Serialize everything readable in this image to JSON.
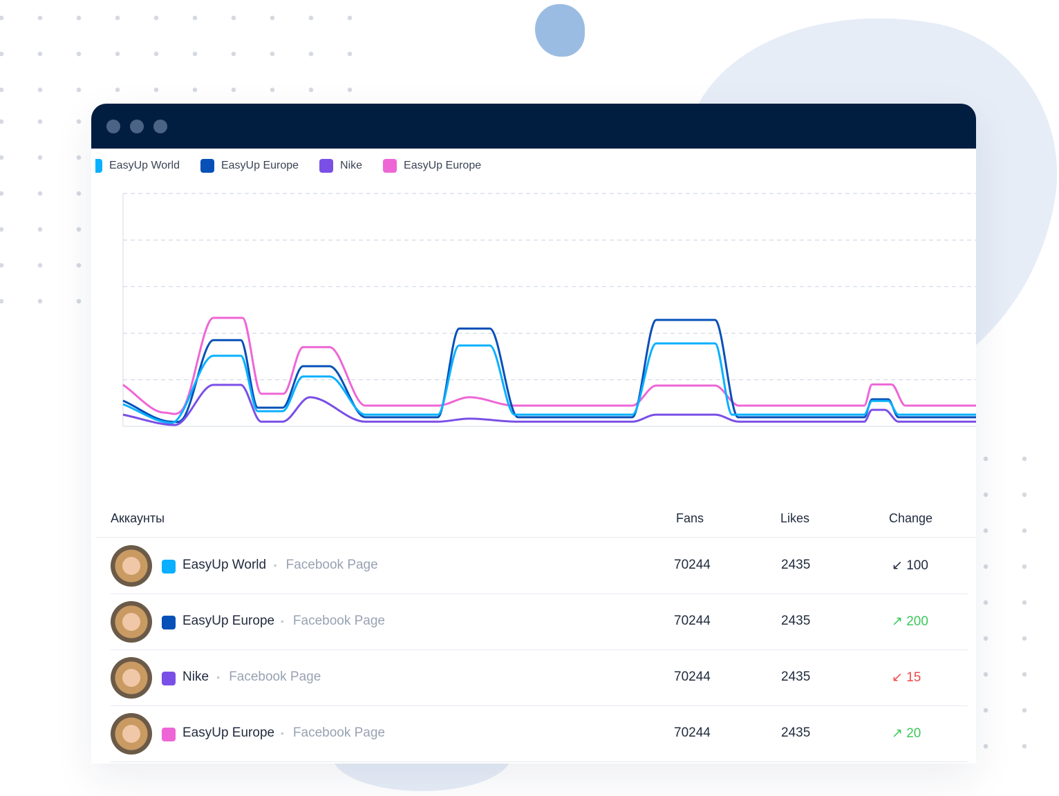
{
  "window": {
    "controls": [
      "close",
      "minimize",
      "maximize"
    ]
  },
  "legend": [
    {
      "label": "EasyUp World",
      "color": "#0ab0ff"
    },
    {
      "label": "EasyUp Europe",
      "color": "#0650b8"
    },
    {
      "label": "Nike",
      "color": "#7a4fe6"
    },
    {
      "label": "EasyUp Europe",
      "color": "#ee66d6"
    }
  ],
  "chart_data": {
    "type": "line",
    "title": "",
    "xlabel": "",
    "ylabel": "",
    "xlim": [
      0,
      100
    ],
    "ylim": [
      0,
      100
    ],
    "grid": "horizontal-dashed",
    "legend_position": "top-left",
    "series": [
      {
        "name": "EasyUp Europe",
        "color": "#ee66d6",
        "x": [
          0,
          4.9,
          7.1,
          10.6,
          14,
          16.2,
          18.8,
          21.1,
          24.2,
          28.4,
          36.9,
          40.6,
          45.9,
          59.7,
          62.5,
          69.4,
          72.2,
          86.9,
          87.8,
          90.1,
          91.7,
          100
        ],
        "y": [
          17.8,
          5.9,
          8,
          46.6,
          46.6,
          14,
          14,
          34,
          34,
          8.9,
          8.9,
          12.5,
          8.9,
          8.9,
          17.5,
          17.5,
          8.9,
          8.9,
          18,
          18,
          8.9,
          8.9
        ]
      },
      {
        "name": "EasyUp Europe",
        "color": "#0650b8",
        "x": [
          0,
          5.7,
          7.1,
          10.6,
          13.8,
          15.8,
          18.7,
          21.1,
          24.2,
          28.4,
          36.9,
          39.4,
          43,
          46.3,
          59.7,
          62.5,
          69.4,
          72.1,
          86.9,
          87.8,
          89.7,
          90.9,
          100
        ],
        "y": [
          11,
          2,
          3.6,
          37,
          37,
          8,
          8,
          25.8,
          25.8,
          3.9,
          3.9,
          42,
          42,
          3.9,
          3.9,
          45.7,
          45.7,
          3.9,
          3.9,
          11.6,
          11.6,
          3.9,
          3.9
        ]
      },
      {
        "name": "EasyUp World",
        "color": "#0ab0ff",
        "x": [
          0,
          5.7,
          10.6,
          13.8,
          15.8,
          18.7,
          21.1,
          24.2,
          28.4,
          36.9,
          39.4,
          43,
          45.9,
          59.7,
          62.5,
          69.4,
          71.4,
          86.9,
          87.8,
          89.7,
          90.9,
          100
        ],
        "y": [
          9.5,
          1.5,
          30.3,
          30.3,
          6.5,
          6.5,
          21.4,
          21.4,
          5,
          5,
          34.7,
          34.7,
          5,
          5,
          35.6,
          35.6,
          5,
          5,
          10.9,
          10.9,
          5,
          5
        ]
      },
      {
        "name": "Nike",
        "color": "#7a4fe6",
        "x": [
          0,
          6.1,
          10.6,
          13.8,
          16.2,
          18.7,
          21.9,
          28.4,
          36.9,
          40.6,
          46.3,
          59.7,
          62.5,
          69.4,
          72.2,
          86.9,
          87.8,
          89.3,
          90.9,
          100
        ],
        "y": [
          5,
          0.6,
          17.8,
          17.8,
          2,
          2,
          12.5,
          2,
          2,
          3.3,
          2,
          2,
          5,
          5,
          2,
          2,
          7.1,
          7.1,
          2,
          2
        ]
      }
    ]
  },
  "table": {
    "headers": {
      "accounts": "Аккаунты",
      "fans": "Fans",
      "likes": "Likes",
      "change": "Change"
    },
    "rows": [
      {
        "name": "EasyUp World",
        "color": "#0ab0ff",
        "type": "Facebook Page",
        "fans": "70244",
        "likes": "2435",
        "change": "100",
        "trend": "down",
        "trend_color": "#1f2a3d"
      },
      {
        "name": "EasyUp Europe",
        "color": "#0650b8",
        "type": "Facebook Page",
        "fans": "70244",
        "likes": "2435",
        "change": "200",
        "trend": "up",
        "trend_color": "#3cc85a"
      },
      {
        "name": "Nike",
        "color": "#7a4fe6",
        "type": "Facebook Page",
        "fans": "70244",
        "likes": "2435",
        "change": "15",
        "trend": "down",
        "trend_color": "#f04848"
      },
      {
        "name": "EasyUp Europe",
        "color": "#ee66d6",
        "type": "Facebook Page",
        "fans": "70244",
        "likes": "2435",
        "change": "20",
        "trend": "up",
        "trend_color": "#3cc85a"
      }
    ]
  }
}
